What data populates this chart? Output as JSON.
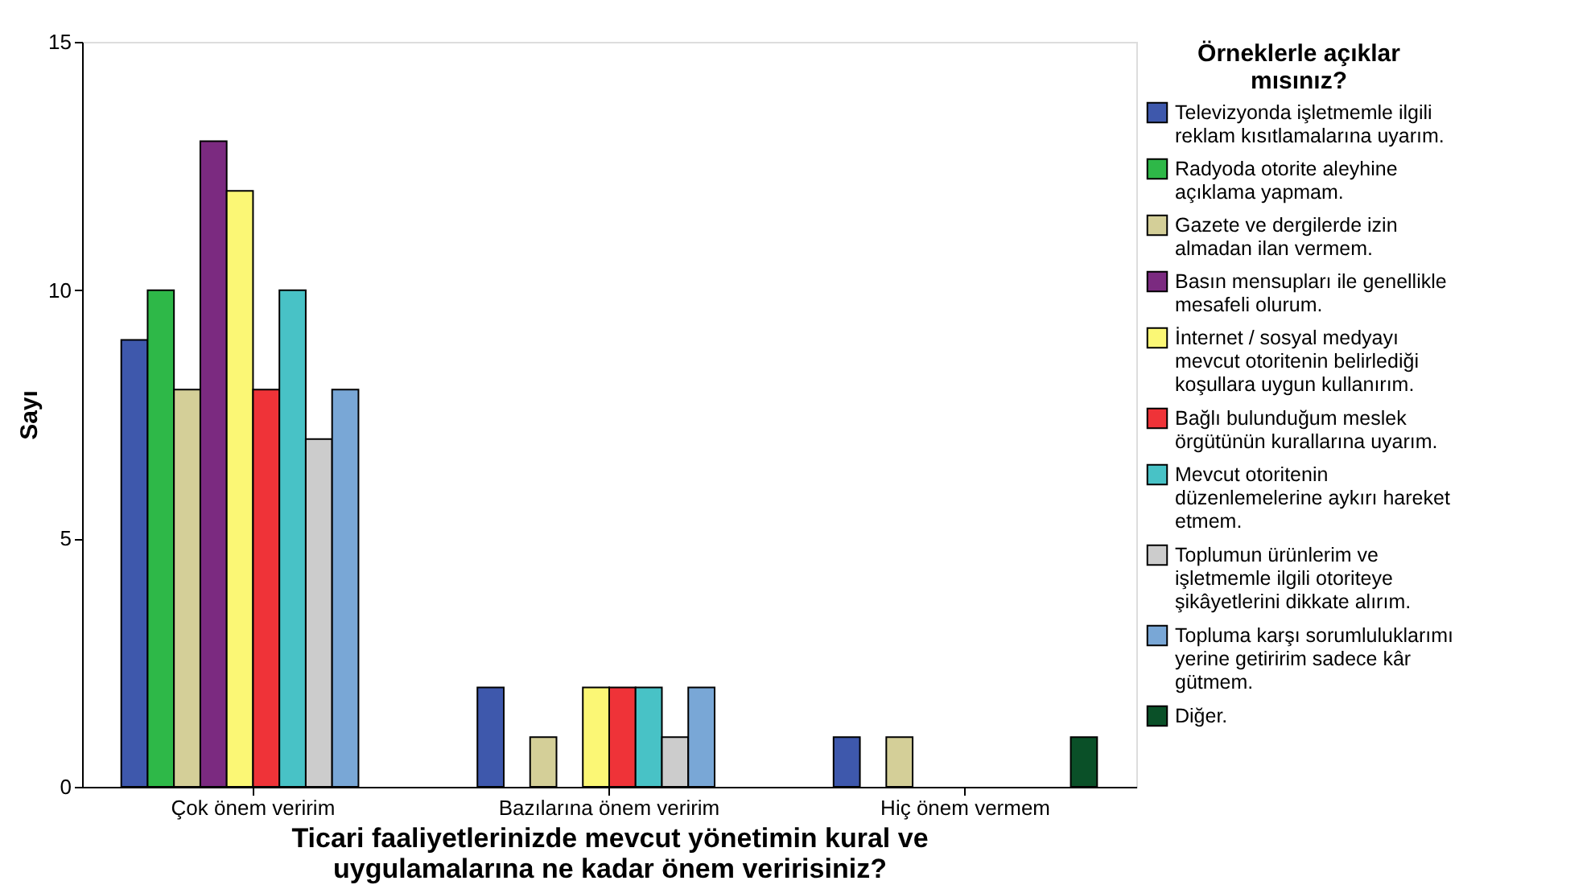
{
  "chart_data": {
    "type": "bar",
    "xlabel": "Ticari faaliyetlerinizde mevcut yönetimin kural ve uygulamalarına ne kadar önem veririsiniz?",
    "ylabel": "Sayı",
    "legend_title": "Örneklerle açıklar mısınız?",
    "categories": [
      "Çok önem veririm",
      "Bazılarına önem veririm",
      "Hiç önem vermem"
    ],
    "series": [
      {
        "name": "Televizyonda işletmemle ilgili reklam kısıtlamalarına uyarım.",
        "color": "#3e58ac",
        "values": [
          9,
          2,
          1
        ]
      },
      {
        "name": "Radyoda otorite aleyhine açıklama yapmam.",
        "color": "#2eb848",
        "values": [
          10,
          null,
          null
        ]
      },
      {
        "name": "Gazete ve dergilerde izin almadan ilan vermem.",
        "color": "#d4cf98",
        "values": [
          8,
          1,
          1
        ]
      },
      {
        "name": "Basın mensupları ile genellikle mesafeli olurum.",
        "color": "#7b2a80",
        "values": [
          13,
          null,
          null
        ]
      },
      {
        "name": "İnternet / sosyal medyayı mevcut otoritenin belirlediği koşullara uygun kullanırım.",
        "color": "#fbf775",
        "values": [
          12,
          2,
          null
        ]
      },
      {
        "name": "Bağlı bulunduğum meslek örgütünün kurallarına uyarım.",
        "color": "#ef3338",
        "values": [
          8,
          2,
          null
        ]
      },
      {
        "name": "Mevcut otoritenin düzenlemelerine aykırı hareket etmem.",
        "color": "#48c2c6",
        "values": [
          10,
          2,
          null
        ]
      },
      {
        "name": "Toplumun ürünlerim ve işletmemle ilgili otoriteye şikâyetlerini dikkate alırım.",
        "color": "#cccccc",
        "values": [
          7,
          1,
          null
        ]
      },
      {
        "name": "Topluma karşı sorumluluklarımı yerine getiririm sadece kâr gütmem.",
        "color": "#79a7d6",
        "values": [
          8,
          2,
          null
        ]
      },
      {
        "name": "Diğer.",
        "color": "#0a5028",
        "values": [
          null,
          null,
          1
        ]
      }
    ],
    "ylim": [
      0,
      15
    ],
    "yticks": [
      0,
      5,
      10,
      15
    ],
    "grid": false,
    "legend": "right"
  }
}
